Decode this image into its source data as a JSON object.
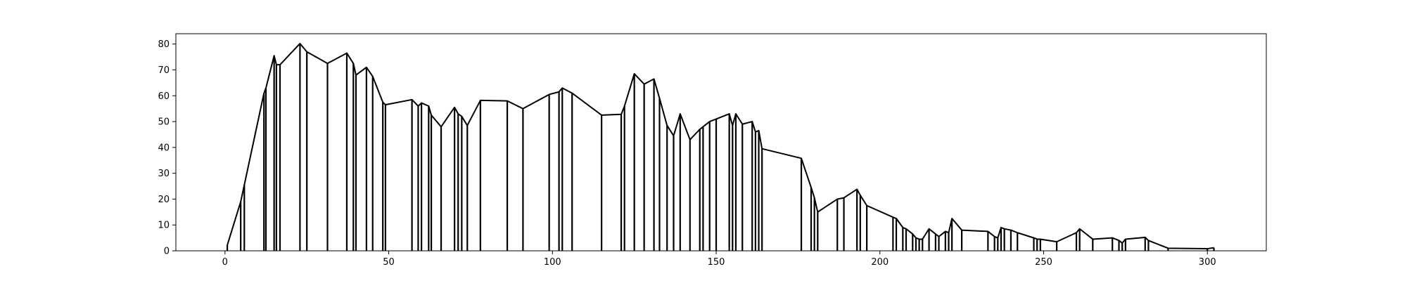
{
  "chart_data": {
    "type": "line",
    "title": "",
    "xlabel": "",
    "ylabel": "",
    "xlim": [
      -15,
      318
    ],
    "ylim": [
      0,
      84
    ],
    "grid": false,
    "legend": "none",
    "line_color": "#000000",
    "background": "#ffffff",
    "x_ticks": [
      0,
      50,
      100,
      150,
      200,
      250,
      300
    ],
    "x_tick_labels": [
      "0",
      "50",
      "100",
      "150",
      "200",
      "250",
      "300"
    ],
    "y_ticks": [
      0,
      10,
      20,
      30,
      40,
      50,
      60,
      70,
      80
    ],
    "y_tick_labels": [
      "0",
      "10",
      "20",
      "30",
      "40",
      "50",
      "60",
      "70",
      "80"
    ],
    "series": [
      {
        "x": [
          0.7,
          4.8,
          5.9,
          11.9,
          12.5,
          15.0,
          15.7,
          16.8,
          22.9,
          25.0,
          31.3,
          37.2,
          39.2,
          40.0,
          43.2,
          45.1,
          48.2,
          49.0,
          57.1,
          59.0,
          60.0,
          62.2,
          63.0,
          66.0,
          70.1,
          71.2,
          72.3,
          74.0,
          78.0,
          86.2,
          91.0,
          99.0,
          102.0,
          103.0,
          106.0,
          115.0,
          121.0,
          122.0,
          125.0,
          128.0,
          131.0,
          132.7,
          135.0,
          137.0,
          139.0,
          142.0,
          145.0,
          146.0,
          148.0,
          150.0,
          154.0,
          155.0,
          156.0,
          158.0,
          161.0,
          162.0,
          163.0,
          164.0,
          176.0,
          179.0,
          180.0,
          181.0,
          187.0,
          189.0,
          193.0,
          194.0,
          196.0,
          204.0,
          205.0,
          207.0,
          208.0,
          210.0,
          211.0,
          212.0,
          213.0,
          215.0,
          217.0,
          218.0,
          220.0,
          221.0,
          222.0,
          225.0,
          233.0,
          235.0,
          236.0,
          237.0,
          238.0,
          240.0,
          242.0,
          247.0,
          248.0,
          249.0,
          254.0,
          260.0,
          261.0,
          265.0,
          271.0,
          273.0,
          274.0,
          275.0,
          281.0,
          282.0,
          288.0,
          300.0,
          302.0
        ],
        "y": [
          2.2,
          19.0,
          25.5,
          61.0,
          63.0,
          75.5,
          72.0,
          72.0,
          80.2,
          77.0,
          72.5,
          76.5,
          72.5,
          68.0,
          71.0,
          67.5,
          57.5,
          56.5,
          58.5,
          56.0,
          57.2,
          56.0,
          52.5,
          48.0,
          55.5,
          53.0,
          52.0,
          48.5,
          58.2,
          58.0,
          55.0,
          60.5,
          61.5,
          63.0,
          61.0,
          52.5,
          52.8,
          56.0,
          68.5,
          64.5,
          66.5,
          59.0,
          48.5,
          44.5,
          53.0,
          43.0,
          47.0,
          48.0,
          50.0,
          51.0,
          53.0,
          48.5,
          53.0,
          49.0,
          50.0,
          46.0,
          46.5,
          39.5,
          35.8,
          24.5,
          20.5,
          15.0,
          20.0,
          20.5,
          23.8,
          21.5,
          17.5,
          13.0,
          12.5,
          9.0,
          8.5,
          6.5,
          5.0,
          4.5,
          4.5,
          8.5,
          6.5,
          5.5,
          7.5,
          7.0,
          12.5,
          8.0,
          7.5,
          5.5,
          5.0,
          9.0,
          8.5,
          8.0,
          7.0,
          5.0,
          4.5,
          4.5,
          3.5,
          7.0,
          8.5,
          4.5,
          5.0,
          4.0,
          3.0,
          4.5,
          5.2,
          4.0,
          1.0,
          0.8,
          1.2
        ]
      }
    ]
  }
}
